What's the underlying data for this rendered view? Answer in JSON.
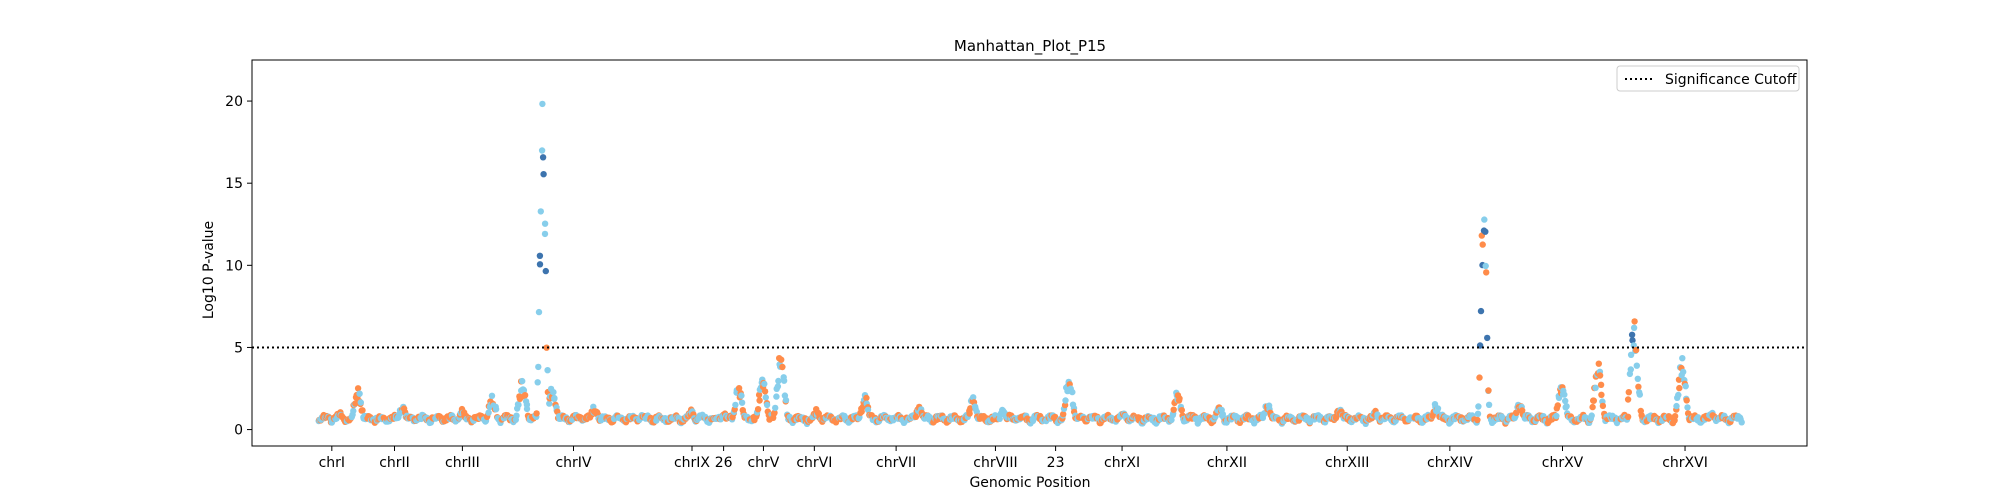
{
  "chart_data": {
    "type": "scatter",
    "title": "Manhattan_Plot_P15",
    "xlabel": "Genomic Position",
    "ylabel": "Log10 P-value",
    "ylim": [
      -1.0,
      22.5
    ],
    "yticks": [
      0,
      5,
      10,
      15,
      20
    ],
    "grid": false,
    "legend": {
      "position": "top-right",
      "entries": [
        "Significance Cutoff"
      ]
    },
    "cutoff": {
      "label": "Significance Cutoff",
      "value": 5
    },
    "colors": {
      "light": "#87CEEB",
      "orange": "#FF8C4A",
      "dark": "#3D74AE",
      "cutoff": "#000000"
    },
    "chromosomes": [
      {
        "label": "chrI",
        "start": 0,
        "end": 230,
        "peaks": [
          [
            180,
            1.1
          ]
        ]
      },
      {
        "label": "chrII",
        "start": 230,
        "end": 1043,
        "peaks": [
          [
            330,
            2.5
          ],
          [
            700,
            1.4
          ]
        ]
      },
      {
        "label": "chrIII",
        "start": 1043,
        "end": 1360,
        "peaks": [
          [
            1200,
            1.2
          ]
        ]
      },
      {
        "label": "chrIV",
        "start": 1360,
        "end": 2892,
        "peaks": [
          [
            1450,
            2.0
          ],
          [
            1700,
            3.0
          ],
          [
            1870,
            21.0
          ],
          [
            1950,
            2.5
          ],
          [
            2300,
            1.4
          ],
          [
            2700,
            1.0
          ]
        ]
      },
      {
        "label": "chrIX",
        "start": 2892,
        "end": 3332,
        "peaks": [
          [
            3100,
            1.2
          ]
        ]
      },
      {
        "label": "26",
        "start": 3332,
        "end": 3418,
        "peaks": [
          [
            3380,
            1.0
          ]
        ]
      },
      {
        "label": "chrV",
        "start": 3418,
        "end": 3995,
        "peaks": [
          [
            3500,
            2.6
          ],
          [
            3700,
            3.2
          ],
          [
            3850,
            4.6
          ]
        ]
      },
      {
        "label": "chrVI",
        "start": 3995,
        "end": 4265,
        "peaks": [
          [
            4150,
            1.2
          ]
        ]
      },
      {
        "label": "chrVII",
        "start": 4265,
        "end": 5356,
        "peaks": [
          [
            4550,
            2.0
          ],
          [
            5000,
            1.4
          ]
        ]
      },
      {
        "label": "chrVIII",
        "start": 5356,
        "end": 5918,
        "peaks": [
          [
            5450,
            1.9
          ],
          [
            5700,
            1.2
          ]
        ]
      },
      {
        "label": "23",
        "start": 5918,
        "end": 6357,
        "peaks": [
          [
            6250,
            3.3
          ]
        ]
      },
      {
        "label": "chrXI",
        "start": 6357,
        "end": 7024,
        "peaks": [
          [
            6700,
            1.2
          ]
        ]
      },
      {
        "label": "chrXII",
        "start": 7024,
        "end": 8102,
        "peaks": [
          [
            7150,
            2.3
          ],
          [
            7500,
            1.4
          ],
          [
            7900,
            1.6
          ]
        ]
      },
      {
        "label": "chrXIII",
        "start": 8102,
        "end": 9026,
        "peaks": [
          [
            8500,
            1.3
          ],
          [
            8800,
            1.1
          ]
        ]
      },
      {
        "label": "chrXIV",
        "start": 9026,
        "end": 9810,
        "peaks": [
          [
            9300,
            1.5
          ],
          [
            9700,
            15.0
          ]
        ]
      },
      {
        "label": "chrXV",
        "start": 9810,
        "end": 10901,
        "peaks": [
          [
            10000,
            1.6
          ],
          [
            10350,
            3.0
          ],
          [
            10650,
            4.0
          ]
        ]
      },
      {
        "label": "chrXVI",
        "start": 10901,
        "end": 11849,
        "peaks": [
          [
            10950,
            6.5
          ],
          [
            11350,
            4.3
          ],
          [
            11600,
            1.0
          ]
        ]
      }
    ]
  }
}
